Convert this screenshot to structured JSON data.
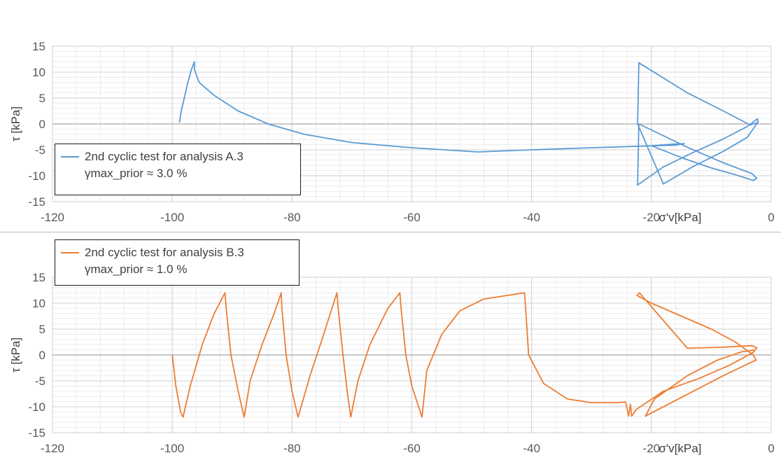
{
  "chart_data": [
    {
      "type": "line",
      "xlabel": "σ'v[kPa]",
      "ylabel": "τ [kPa]",
      "xlim": [
        -120,
        0
      ],
      "ylim": [
        -15,
        15
      ],
      "x_ticks": [
        "-120",
        "-100",
        "-80",
        "-60",
        "-40",
        "-20",
        "0"
      ],
      "y_ticks": [
        "15",
        "10",
        "5",
        "0",
        "-5",
        "-10",
        "-15"
      ],
      "grid": true,
      "legend_position": "bottom-left",
      "series": [
        {
          "name": "2nd cyclic test for analysis  A.3",
          "note": "γmax_prior ≈ 3.0 %",
          "color": "#5b9bd5",
          "x": [
            -98.8,
            -98.5,
            -98,
            -97.4,
            -96.8,
            -96.3,
            -96.3,
            -95.5,
            -93,
            -89,
            -84,
            -78,
            -70,
            -60,
            -49,
            -40,
            -30,
            -22,
            -16,
            -14.5,
            -16.5,
            -20,
            -15,
            -10,
            -6,
            -3,
            -2.4,
            -3.2,
            -8,
            -14,
            -22.1,
            -22.3,
            -18,
            -13,
            -8,
            -4,
            -2.3,
            -2.2,
            -3.5,
            -8,
            -14,
            -22.1,
            -22.3,
            -18,
            -13,
            -8,
            -4,
            -2.3
          ],
          "y": [
            0.3,
            2.5,
            5,
            8,
            10.5,
            12,
            10.5,
            8,
            5.5,
            2.5,
            0,
            -2,
            -3.6,
            -4.6,
            -5.4,
            -5,
            -4.6,
            -4.3,
            -4.1,
            -3.8,
            -3.9,
            -4.2,
            -6.5,
            -8.5,
            -9.8,
            -10.9,
            -10.5,
            -9.6,
            -7.5,
            -4.5,
            0,
            -11.8,
            -8.3,
            -5.5,
            -2.9,
            -0.5,
            1,
            0.3,
            -0.2,
            2.5,
            6,
            11.8,
            0,
            -11.6,
            -8.2,
            -5.3,
            -2.6,
            0.2
          ]
        }
      ]
    },
    {
      "type": "line",
      "xlabel": "σ'v[kPa]",
      "ylabel": "τ [kPa]",
      "xlim": [
        -120,
        0
      ],
      "ylim": [
        -15,
        15
      ],
      "x_ticks": [
        "-120",
        "-100",
        "-80",
        "-60",
        "-40",
        "-20",
        "0"
      ],
      "y_ticks": [
        "15",
        "10",
        "5",
        "0",
        "-5",
        "-10",
        "-15"
      ],
      "grid": true,
      "legend_position": "top-left",
      "series": [
        {
          "name": "2nd cyclic test for analysis B.3",
          "note": "γmax_prior ≈ 1.0 %",
          "color": "#ed7d31",
          "x": [
            -100,
            -99.4,
            -98.6,
            -98.2,
            -97,
            -95,
            -93,
            -91.2,
            -91,
            -90.2,
            -89,
            -88,
            -87,
            -85,
            -83,
            -81.8,
            -81.7,
            -81,
            -80,
            -79,
            -77,
            -75,
            -72.5,
            -72.3,
            -71.5,
            -70.8,
            -70.2,
            -69,
            -67,
            -64,
            -62,
            -61.8,
            -61,
            -60,
            -58.3,
            -57.5,
            -55,
            -52,
            -48,
            -44,
            -41.2,
            -41,
            -40.5,
            -38,
            -34,
            -30,
            -26,
            -24.3,
            -23.8,
            -23.5,
            -23.3,
            -22.5,
            -18,
            -12,
            -7,
            -3,
            -2.4,
            -3.2,
            -8,
            -14,
            -22,
            -22.4,
            -20,
            -15,
            -10,
            -6,
            -3,
            -2.5,
            -3.5,
            -8,
            -13,
            -21,
            -19.5,
            -14,
            -9,
            -5,
            -2.6
          ],
          "y": [
            0,
            -6,
            -11,
            -12,
            -6,
            2,
            8,
            12,
            9,
            0,
            -7,
            -12,
            -5,
            2,
            8,
            12,
            9,
            0,
            -7,
            -12,
            -4,
            3,
            12,
            9,
            0,
            -7,
            -12,
            -5,
            2,
            9,
            12,
            9,
            0,
            -6,
            -12,
            -3,
            4,
            8.5,
            10.8,
            11.5,
            12,
            9,
            0,
            -5.5,
            -8.5,
            -9.2,
            -9.2,
            -9.1,
            -11.8,
            -9.5,
            -11.8,
            -10.5,
            -7,
            -4.5,
            -2,
            0.5,
            1.4,
            1.8,
            1.5,
            1.3,
            12,
            11.5,
            10,
            7.5,
            5,
            2.5,
            0,
            -1,
            -1.5,
            -4,
            -7,
            -11.8,
            -8.5,
            -4,
            -1,
            0.6,
            1
          ]
        }
      ]
    }
  ]
}
